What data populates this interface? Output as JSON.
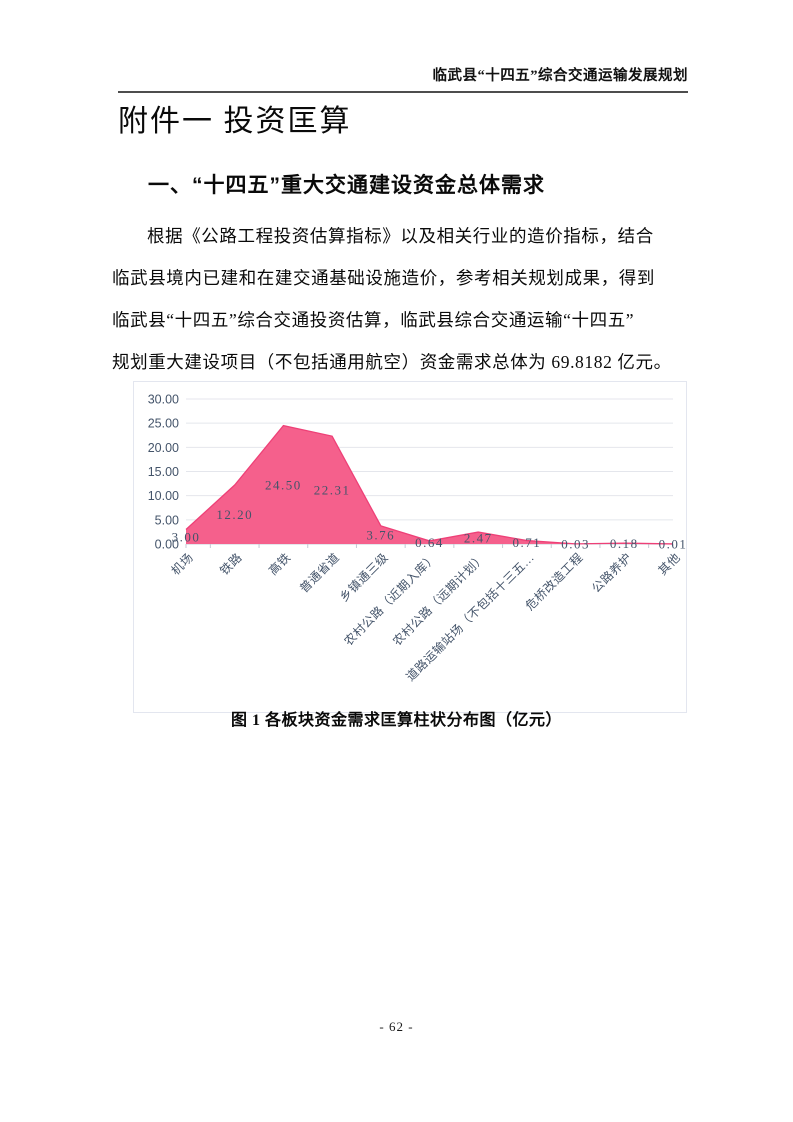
{
  "page": {
    "header": "临武县“十四五”综合交通运输发展规划",
    "title": "附件一 投资匡算",
    "section_heading": "一、“十四五”重大交通建设资金总体需求",
    "paragraph_lines": [
      "根据《公路工程投资估算指标》以及相关行业的造价指标，结合",
      "临武县境内已建和在建交通基础设施造价，参考相关规划成果，得到",
      "临武县“十四五”综合交通投资估算，临武县综合交通运输“十四五”",
      "规划重大建设项目（不包括通用航空）资金需求总体为 69.8182 亿元。"
    ],
    "figure_caption": "图 1 各板块资金需求匡算柱状分布图（亿元）",
    "page_number": "- 62 -"
  },
  "chart_data": {
    "type": "area",
    "title": "",
    "xlabel": "",
    "ylabel": "",
    "categories": [
      "机场",
      "铁路",
      "高铁",
      "普通省道",
      "乡镇通三级",
      "农村公路（近期入库）",
      "农村公路（远期计划）",
      "道路运输站场（不包括十三五…",
      "危桥改造工程",
      "公路养护",
      "其他"
    ],
    "values": [
      3.0,
      12.2,
      24.5,
      22.31,
      3.76,
      0.64,
      2.47,
      0.71,
      0.03,
      0.18,
      0.01
    ],
    "ylim": [
      0,
      30
    ],
    "ytick_step": 5,
    "grid": true,
    "legend": false,
    "colors": {
      "area_fill": "#f5608c",
      "area_stroke": "#ee4077",
      "axis_text": "#44546a",
      "gridline": "#e4e6ec",
      "axis_line": "#c9cdd8",
      "tick": "#c4c9d4",
      "chart_border": "#e3e6ef"
    }
  }
}
